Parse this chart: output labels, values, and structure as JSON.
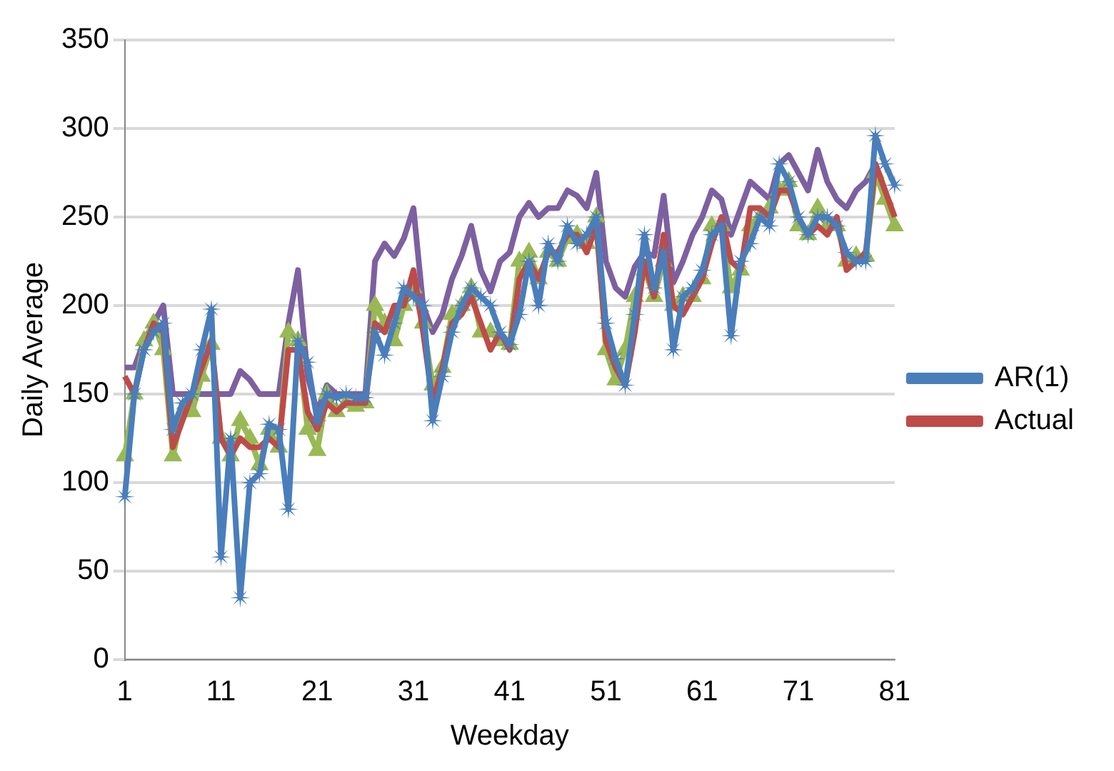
{
  "chart_data": {
    "type": "line",
    "xlabel": "Weekday",
    "ylabel": "Daily Average",
    "categories": [
      "1",
      null,
      null,
      null,
      null,
      null,
      null,
      null,
      null,
      null,
      "11",
      null,
      null,
      null,
      null,
      null,
      null,
      null,
      null,
      null,
      "21",
      null,
      null,
      null,
      null,
      null,
      null,
      null,
      null,
      null,
      "31",
      null,
      null,
      null,
      null,
      null,
      null,
      null,
      null,
      null,
      "41",
      null,
      null,
      null,
      null,
      null,
      null,
      null,
      null,
      null,
      "51",
      null,
      null,
      null,
      null,
      null,
      null,
      null,
      null,
      null,
      "61",
      null,
      null,
      null,
      null,
      null,
      null,
      null,
      null,
      null,
      "71",
      null,
      null,
      null,
      null,
      null,
      null,
      null,
      null,
      null,
      "81"
    ],
    "ylim": [
      0,
      350
    ],
    "yticks": [
      0,
      50,
      100,
      150,
      200,
      250,
      300,
      350
    ],
    "grid": "y",
    "legend": "right",
    "series": [
      {
        "name": "AR(1)",
        "color": "#4a7ebb",
        "marker": "star",
        "values": [
          92,
          150,
          175,
          185,
          190,
          130,
          145,
          150,
          175,
          198,
          58,
          125,
          35,
          100,
          105,
          133,
          130,
          85,
          180,
          168,
          135,
          150,
          148,
          150,
          148,
          148,
          185,
          172,
          190,
          210,
          205,
          200,
          135,
          160,
          185,
          200,
          210,
          205,
          200,
          185,
          178,
          195,
          225,
          200,
          235,
          225,
          245,
          235,
          240,
          250,
          190,
          170,
          155,
          195,
          240,
          210,
          230,
          175,
          205,
          210,
          220,
          240,
          245,
          183,
          225,
          235,
          250,
          245,
          280,
          270,
          250,
          240,
          250,
          250,
          245,
          230,
          225,
          225,
          296,
          280,
          268
        ]
      },
      {
        "name": "Actual",
        "color": "#be4b48",
        "marker": "none",
        "values": [
          160,
          150,
          175,
          190,
          185,
          120,
          135,
          150,
          165,
          180,
          125,
          115,
          125,
          120,
          120,
          125,
          120,
          175,
          175,
          140,
          130,
          145,
          140,
          145,
          145,
          145,
          190,
          185,
          200,
          200,
          220,
          185,
          145,
          165,
          190,
          195,
          205,
          190,
          175,
          185,
          175,
          215,
          225,
          215,
          230,
          230,
          240,
          240,
          230,
          245,
          180,
          165,
          155,
          185,
          225,
          205,
          240,
          200,
          195,
          205,
          215,
          235,
          250,
          225,
          220,
          255,
          255,
          250,
          265,
          265,
          250,
          240,
          245,
          240,
          250,
          220,
          225,
          230,
          280,
          265,
          250
        ]
      },
      {
        "color": "#98b954",
        "marker": "triangle",
        "values": [
          115,
          150,
          180,
          190,
          175,
          115,
          140,
          140,
          160,
          178,
          125,
          115,
          135,
          125,
          110,
          130,
          120,
          185,
          180,
          130,
          118,
          150,
          140,
          145,
          143,
          145,
          200,
          190,
          180,
          200,
          210,
          190,
          155,
          165,
          195,
          200,
          210,
          185,
          185,
          180,
          178,
          225,
          230,
          215,
          230,
          225,
          238,
          240,
          235,
          250,
          175,
          158,
          175,
          205,
          220,
          205,
          225,
          200,
          205,
          205,
          215,
          245,
          245,
          210,
          220,
          245,
          250,
          255,
          265,
          270,
          245,
          240,
          255,
          245,
          245,
          225,
          228,
          228,
          275,
          260,
          245
        ]
      },
      {
        "color": "#7d60a0",
        "marker": "none",
        "values": [
          165,
          165,
          180,
          190,
          200,
          150,
          150,
          150,
          150,
          150,
          150,
          150,
          163,
          158,
          150,
          150,
          150,
          190,
          220,
          160,
          140,
          155,
          150,
          150,
          150,
          150,
          225,
          235,
          228,
          238,
          255,
          200,
          185,
          195,
          215,
          228,
          245,
          220,
          208,
          225,
          230,
          250,
          258,
          250,
          255,
          255,
          265,
          262,
          255,
          275,
          225,
          210,
          205,
          222,
          230,
          228,
          262,
          213,
          225,
          240,
          250,
          265,
          260,
          240,
          255,
          270,
          265,
          260,
          280,
          285,
          275,
          265,
          288,
          270,
          260,
          255,
          265,
          270,
          280,
          265,
          250
        ]
      }
    ]
  }
}
